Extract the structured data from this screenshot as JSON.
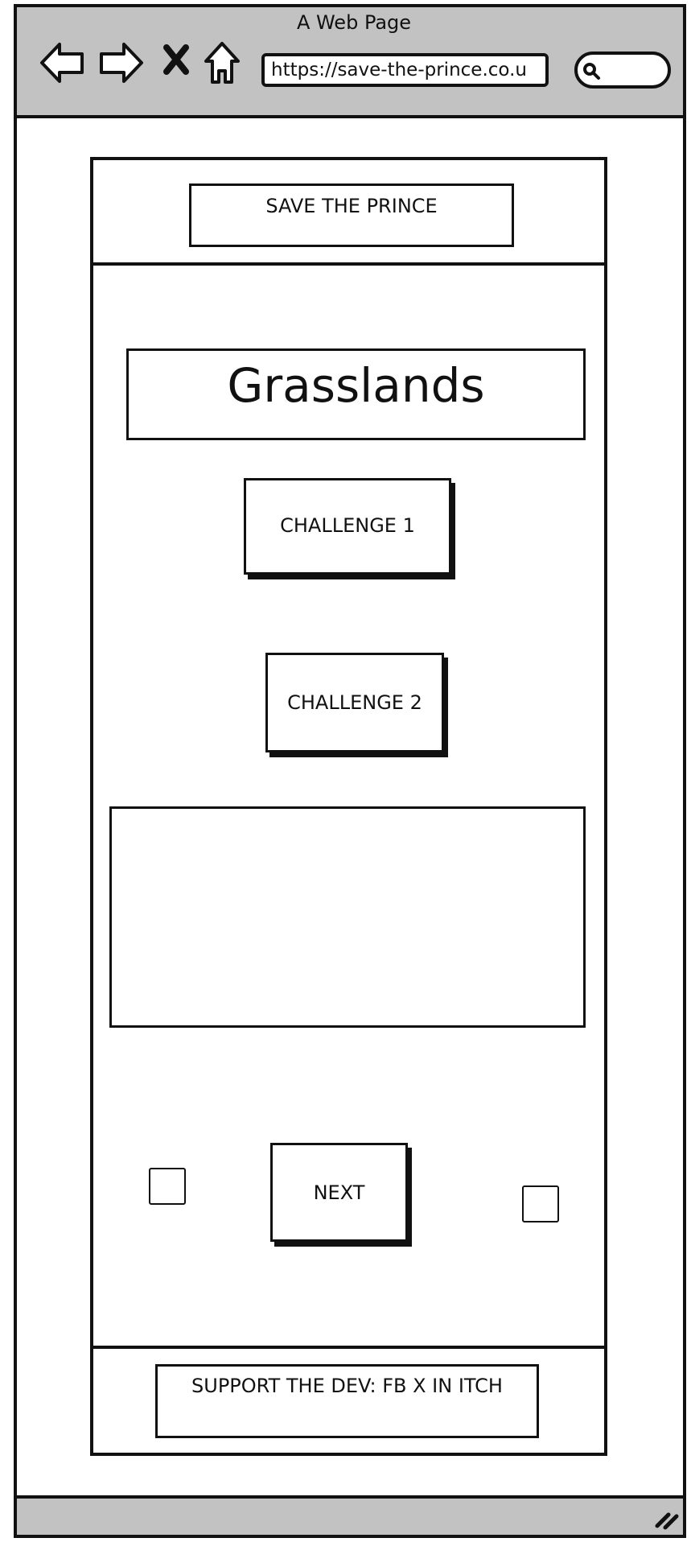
{
  "browser": {
    "window_title": "A Web Page",
    "url": "https://save-the-prince.co.u",
    "icons": [
      "back-arrow-icon",
      "forward-arrow-icon",
      "close-icon",
      "home-icon",
      "search-icon",
      "resize-grip-icon"
    ]
  },
  "header": {
    "title": "SAVE THE PRINCE"
  },
  "main": {
    "heading": "Grasslands",
    "challenges": [
      {
        "label": "CHALLENGE 1"
      },
      {
        "label": "CHALLENGE 2"
      }
    ],
    "next_label": "NEXT"
  },
  "footer": {
    "text": "SUPPORT THE DEV: FB X IN ITCH"
  },
  "colors": {
    "chrome": "#c2c2c2",
    "ink": "#111111",
    "background": "#ffffff"
  }
}
